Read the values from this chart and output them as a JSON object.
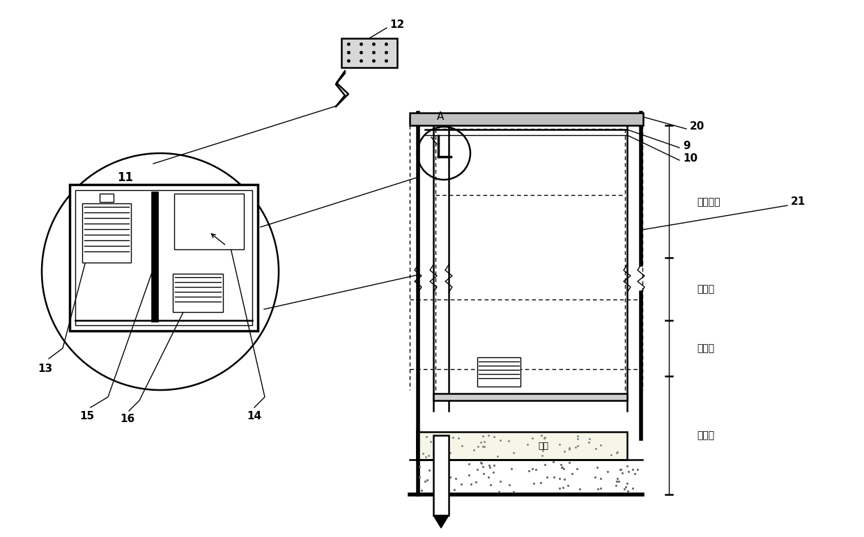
{
  "bg_color": "#ffffff",
  "line_color": "#000000",
  "chinese": {
    "daolu": "道路面层",
    "hj": "厚基层",
    "hd": "厚坡层",
    "yz": "原状土",
    "xisha": "细沙"
  }
}
